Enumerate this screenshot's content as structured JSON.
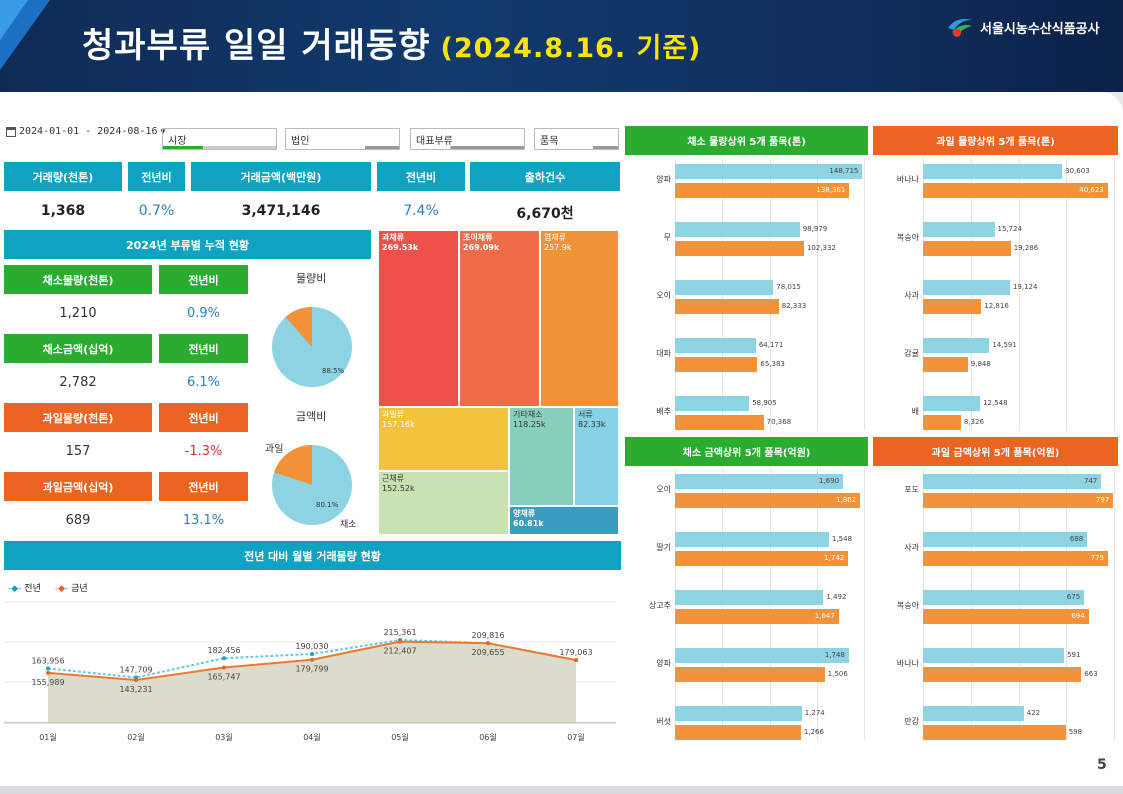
{
  "header": {
    "title": "청과부류 일일 거래동향",
    "date": "(2024.8.16. 기준)",
    "org": "서울시농수산식품공사"
  },
  "page_number": "5",
  "filters": {
    "date_range": "2024-01-01 - 2024-08-16",
    "market": "시장",
    "corp": "법인",
    "category": "대표부류",
    "item": "품목"
  },
  "kpis": {
    "volume_label": "거래량(천톤)",
    "volume": "1,368",
    "yoy1_label": "전년비",
    "yoy1": "0.7%",
    "amount_label": "거래금액(백만원)",
    "amount": "3,471,146",
    "yoy2_label": "전년비",
    "yoy2": "7.4%",
    "ship_label": "출하건수",
    "ship": "6,670천"
  },
  "cumulative": {
    "title": "2024년 부류별 누적 현황",
    "veg_vol_label": "채소물량(천톤)",
    "veg_vol": "1,210",
    "veg_vol_yoy_label": "전년비",
    "veg_vol_yoy": "0.9%",
    "veg_amt_label": "채소금액(십억)",
    "veg_amt": "2,782",
    "veg_amt_yoy_label": "전년비",
    "veg_amt_yoy": "6.1%",
    "fruit_vol_label": "과일물량(천톤)",
    "fruit_vol": "157",
    "fruit_vol_yoy_label": "전년비",
    "fruit_vol_yoy": "-1.3%",
    "fruit_amt_label": "과일금액(십억)",
    "fruit_amt": "689",
    "fruit_amt_yoy_label": "전년비",
    "fruit_amt_yoy": "13.1%",
    "pie1_title": "물량비",
    "pie1_pct": "88.5%",
    "pie1_value": 0.885,
    "pie2_title": "금액비",
    "pie2_pct": "80.1%",
    "pie2_value": 0.801,
    "pie2_fruit_label": "과일",
    "pie2_veg_label": "채소"
  },
  "treemap": [
    {
      "name": "과채류",
      "value": "269.53k"
    },
    {
      "name": "조미채류",
      "value": "269.09k"
    },
    {
      "name": "엽채류",
      "value": "257.9k"
    },
    {
      "name": "과일류",
      "value": "157.16k"
    },
    {
      "name": "기타채소",
      "value": "118.25k"
    },
    {
      "name": "서류",
      "value": "82.33k"
    },
    {
      "name": "근채류",
      "value": "152.52k"
    },
    {
      "name": "양채류",
      "value": "60.81k"
    }
  ],
  "monthly": {
    "title": "전년 대비 월별 거래물량 현황",
    "legend_prev": "전년",
    "legend_cur": "금년",
    "months": [
      "01월",
      "02월",
      "03월",
      "04월",
      "05월",
      "06월",
      "07월"
    ],
    "prev": [
      163956,
      147709,
      182456,
      190030,
      215361,
      209816,
      179063
    ],
    "cur": [
      155989,
      143231,
      165747,
      179799,
      212407,
      209655,
      179063
    ],
    "prev_labels": [
      "163,956",
      "147,709",
      "182,456",
      "190,030",
      "215,361",
      "209,816",
      "179,063"
    ],
    "cur_labels": [
      "155,989",
      "143,231",
      "165,747",
      "179,799",
      "212,407",
      "209,655",
      ""
    ]
  },
  "colors": {
    "teal": "#0fa3c1",
    "green": "#2bab30",
    "orange": "#eb6422",
    "bar_blue": "#8dd3e2",
    "bar_orange": "#f2933a"
  },
  "chart_data": [
    {
      "type": "bar",
      "title": "채소 물량상위 5개 품목(톤)",
      "categories": [
        "양파",
        "무",
        "오이",
        "대파",
        "배추"
      ],
      "series": [
        {
          "values": [
            148715,
            98979,
            78015,
            64171,
            58905
          ]
        },
        {
          "values": [
            138361,
            102332,
            82333,
            65383,
            70368
          ]
        }
      ],
      "labels": [
        [
          "148,715",
          "138,361"
        ],
        [
          "98,979",
          "102,332"
        ],
        [
          "78,015",
          "82,333"
        ],
        [
          "64,171",
          "65,383"
        ],
        [
          "58,905",
          "70,368"
        ]
      ],
      "xlim": [
        0,
        150000
      ]
    },
    {
      "type": "bar",
      "title": "과일 물량상위 5개 품목(톤)",
      "categories": [
        "바나나",
        "복숭아",
        "사과",
        "감귤",
        "배"
      ],
      "series": [
        {
          "values": [
            30603,
            15724,
            19124,
            14591,
            12548
          ]
        },
        {
          "values": [
            40623,
            19286,
            12816,
            9848,
            8326
          ]
        }
      ],
      "labels": [
        [
          "30,603",
          "40,623"
        ],
        [
          "15,724",
          "19,286"
        ],
        [
          "19,124",
          "12,816"
        ],
        [
          "14,591",
          "9,848"
        ],
        [
          "12,548",
          "8,326"
        ]
      ],
      "xlim": [
        0,
        42000
      ]
    },
    {
      "type": "bar",
      "title": "채소 금액상위 5개 품목(억원)",
      "categories": [
        "오이",
        "딸기",
        "상고추",
        "양파",
        "버섯"
      ],
      "series": [
        {
          "values": [
            1690,
            1548,
            1492,
            1748,
            1274
          ]
        },
        {
          "values": [
            1862,
            1742,
            1647,
            1506,
            1266
          ]
        }
      ],
      "labels": [
        [
          "1,690",
          "1,862"
        ],
        [
          "1,548",
          "1,742"
        ],
        [
          "1,492",
          "1,647"
        ],
        [
          "1,748",
          "1,506"
        ],
        [
          "1,274",
          "1,266"
        ]
      ],
      "xlim": [
        0,
        1900
      ]
    },
    {
      "type": "bar",
      "title": "과일 금액상위 5개 품목(억원)",
      "categories": [
        "포도",
        "사과",
        "복숭아",
        "바나나",
        "만감"
      ],
      "series": [
        {
          "values": [
            747,
            688,
            675,
            591,
            422
          ]
        },
        {
          "values": [
            797,
            775,
            694,
            663,
            598
          ]
        }
      ],
      "labels": [
        [
          "747",
          "797"
        ],
        [
          "688",
          "775"
        ],
        [
          "675",
          "694"
        ],
        [
          "591",
          "663"
        ],
        [
          "422",
          "598"
        ]
      ],
      "xlim": [
        0,
        800
      ]
    }
  ]
}
